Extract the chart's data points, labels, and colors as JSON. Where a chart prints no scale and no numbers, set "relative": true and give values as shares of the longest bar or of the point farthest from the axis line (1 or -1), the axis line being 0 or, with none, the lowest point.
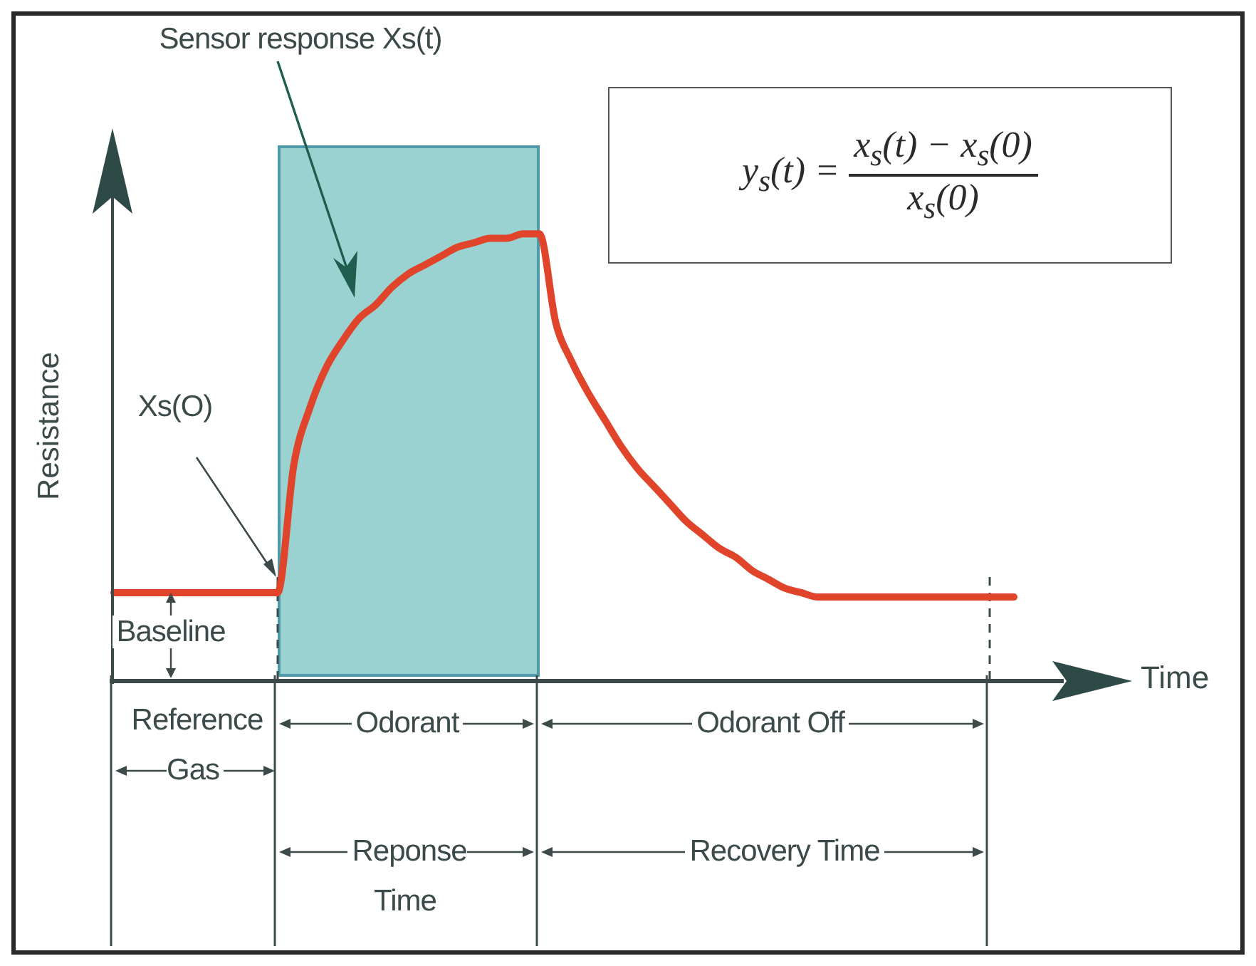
{
  "chart_data": {
    "type": "line",
    "relative": true,
    "xlabel": "Time",
    "ylabel": "Resistance",
    "tick_labels": false,
    "line_style": "solid",
    "categories": [
      null,
      null,
      null,
      null,
      null,
      null,
      null,
      null,
      null,
      null,
      null,
      null,
      null,
      null,
      null,
      null,
      null,
      null,
      null,
      null,
      null,
      null,
      null,
      null,
      null,
      null,
      null,
      null,
      null,
      null,
      null,
      null,
      null,
      null,
      null,
      null,
      null,
      null,
      null,
      null,
      null,
      null,
      null,
      null,
      null,
      null,
      null,
      null,
      null,
      null,
      null,
      null,
      null,
      null,
      null,
      null
    ],
    "series": [
      {
        "color": "#e0452b",
        "values": [
          0.19,
          0.19,
          0.19,
          0.19,
          0.19,
          0.19,
          0.19,
          0.19,
          0.19,
          0.19,
          0.19,
          0.48,
          0.61,
          0.7,
          0.76,
          0.81,
          0.84,
          0.88,
          0.91,
          0.93,
          0.95,
          0.97,
          0.98,
          0.99,
          0.99,
          1.0,
          1.0,
          0.8,
          0.71,
          0.64,
          0.58,
          0.52,
          0.47,
          0.43,
          0.39,
          0.35,
          0.32,
          0.29,
          0.27,
          0.24,
          0.22,
          0.2,
          0.19,
          0.18,
          0.18,
          0.18,
          0.18,
          0.18,
          0.18,
          0.18,
          0.18,
          0.18,
          0.18,
          0.18,
          0.18,
          0.18
        ]
      }
    ],
    "annotations": [
      "Sensor response Xs(t)",
      "Xs(O)",
      "Baseline",
      "y$_{s}$(t) =",
      "x$_{s}$(t) − x$_{s}$(0)",
      "x$_{s}$(0)",
      "Reference Gas",
      "Odorant",
      "Odorant Off",
      "Reponse Time",
      "Recovery Time"
    ]
  }
}
